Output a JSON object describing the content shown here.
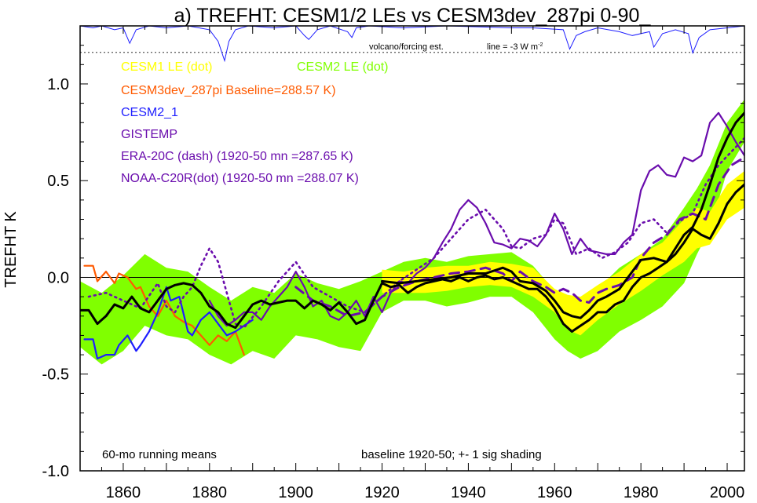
{
  "chart_data": {
    "type": "line",
    "title": "a) TREFHT: CESM1/2 LEs vs CESM3dev_287pi 0-90_",
    "xlabel": "",
    "ylabel": "TREFHT K",
    "xlim": [
      1850,
      2004
    ],
    "ylim": [
      -1.0,
      1.3
    ],
    "x_ticks": [
      "1860",
      "1880",
      "1900",
      "1920",
      "1940",
      "1960",
      "1980",
      "2000"
    ],
    "y_ticks": [
      "1.0",
      "0.5",
      "0.0",
      "-0.5",
      "-1.0"
    ],
    "zero_line": 0.0,
    "legend": [
      {
        "text": "CESM1 LE (dot)",
        "color": "#ffff00"
      },
      {
        "text": "CESM2 LE (dot)",
        "color": "#80ff00"
      },
      {
        "text": "CESM3dev_287pi Baseline=288.57 K)",
        "color": "#ff5a00"
      },
      {
        "text": "CESM2_1",
        "color": "#1e1eff"
      },
      {
        "text": "GISTEMP",
        "color": "#6a0dad"
      },
      {
        "text": "ERA-20C (dash) (1920-50 mn =287.65 K)",
        "color": "#6a0dad"
      },
      {
        "text": "NOAA-C20R(dot) (1920-50 mn =288.07 K)",
        "color": "#6a0dad"
      }
    ],
    "annotations": {
      "running_mean": "60-mo running means",
      "baseline": "baseline 1920-50; +- 1 sig shading",
      "volcano": "volcano/forcing est.",
      "volcano_scale": "line = -3 W m",
      "volcano_scale_sup": "-2"
    },
    "volcano_forcing": {
      "color": "#1e1eff",
      "x": [
        1850,
        1853,
        1855,
        1858,
        1860,
        1861.5,
        1863,
        1866,
        1870,
        1875,
        1880,
        1882,
        1883.5,
        1884.5,
        1886,
        1889,
        1895,
        1900,
        1902,
        1903,
        1905,
        1908,
        1912,
        1913,
        1914,
        1917,
        1925,
        1935,
        1950,
        1955,
        1962,
        1963.5,
        1965,
        1967,
        1970,
        1975,
        1978,
        1982,
        1983,
        1985,
        1988,
        1991,
        1992,
        1993.5,
        1996,
        2000,
        2004
      ],
      "y": [
        1.3,
        1.29,
        1.3,
        1.28,
        1.29,
        1.21,
        1.28,
        1.3,
        1.29,
        1.3,
        1.28,
        1.22,
        1.12,
        1.22,
        1.28,
        1.3,
        1.29,
        1.3,
        1.25,
        1.23,
        1.28,
        1.3,
        1.27,
        1.24,
        1.29,
        1.3,
        1.29,
        1.3,
        1.29,
        1.29,
        1.28,
        1.18,
        1.25,
        1.27,
        1.29,
        1.27,
        1.25,
        1.27,
        1.19,
        1.26,
        1.28,
        1.26,
        1.16,
        1.24,
        1.28,
        1.29,
        1.3
      ]
    },
    "bands": [
      {
        "name": "CESM2 LE",
        "color": "#80ff00",
        "x": [
          1850,
          1855,
          1860,
          1865,
          1870,
          1875,
          1880,
          1885,
          1890,
          1895,
          1900,
          1905,
          1910,
          1915,
          1920,
          1925,
          1930,
          1935,
          1940,
          1945,
          1950,
          1955,
          1960,
          1963,
          1966,
          1970,
          1975,
          1980,
          1985,
          1990,
          1993,
          1996,
          2000,
          2004
        ],
        "upper": [
          -0.02,
          -0.08,
          0.01,
          0.12,
          0.05,
          0.03,
          -0.05,
          -0.12,
          -0.05,
          -0.08,
          0.02,
          -0.03,
          -0.06,
          -0.02,
          0.03,
          0.08,
          0.1,
          0.08,
          0.11,
          0.12,
          0.13,
          0.06,
          -0.07,
          -0.15,
          -0.12,
          -0.06,
          0.05,
          0.12,
          0.2,
          0.36,
          0.46,
          0.58,
          0.8,
          0.92
        ],
        "lower": [
          -0.36,
          -0.45,
          -0.38,
          -0.25,
          -0.3,
          -0.32,
          -0.4,
          -0.45,
          -0.38,
          -0.42,
          -0.3,
          -0.32,
          -0.36,
          -0.38,
          -0.18,
          -0.12,
          -0.12,
          -0.15,
          -0.13,
          -0.1,
          -0.1,
          -0.18,
          -0.32,
          -0.38,
          -0.42,
          -0.38,
          -0.28,
          -0.22,
          -0.15,
          -0.03,
          0.12,
          0.25,
          0.55,
          0.7
        ]
      },
      {
        "name": "CESM1 LE",
        "color": "#ffff00",
        "x": [
          1920,
          1925,
          1930,
          1935,
          1940,
          1945,
          1950,
          1955,
          1960,
          1963,
          1966,
          1970,
          1975,
          1980,
          1985,
          1990,
          1993,
          1996,
          2000,
          2004
        ],
        "upper": [
          0.04,
          0.03,
          0.05,
          0.06,
          0.06,
          0.08,
          0.07,
          0.05,
          -0.06,
          -0.09,
          -0.1,
          -0.04,
          0.03,
          0.12,
          0.18,
          0.3,
          0.36,
          0.34,
          0.48,
          0.55
        ],
        "lower": [
          -0.08,
          -0.08,
          -0.08,
          -0.07,
          -0.05,
          -0.04,
          -0.05,
          -0.1,
          -0.18,
          -0.27,
          -0.3,
          -0.22,
          -0.14,
          -0.07,
          0.01,
          0.08,
          0.15,
          0.17,
          0.3,
          0.36
        ]
      }
    ],
    "series": [
      {
        "name": "GISTEMP",
        "color": "#6a0dad",
        "style": "solid",
        "x": [
          1880,
          1882,
          1884,
          1886,
          1888,
          1890,
          1892,
          1894,
          1896,
          1898,
          1900,
          1902,
          1904,
          1906,
          1908,
          1910,
          1912,
          1914,
          1916,
          1918,
          1920,
          1922,
          1924,
          1926,
          1928,
          1930,
          1932,
          1934,
          1936,
          1938,
          1940,
          1942,
          1944,
          1946,
          1948,
          1950,
          1952,
          1954,
          1956,
          1958,
          1960,
          1962,
          1964,
          1966,
          1968,
          1970,
          1972,
          1974,
          1976,
          1978,
          1980,
          1982,
          1984,
          1986,
          1988,
          1990,
          1992,
          1994,
          1996,
          1998,
          2000,
          2002,
          2004
        ],
        "y": [
          -0.12,
          -0.2,
          -0.25,
          -0.22,
          -0.18,
          -0.18,
          -0.22,
          -0.15,
          -0.1,
          -0.05,
          0.03,
          -0.05,
          -0.15,
          -0.12,
          -0.2,
          -0.22,
          -0.18,
          -0.12,
          -0.2,
          -0.1,
          -0.18,
          -0.08,
          -0.02,
          -0.03,
          0.02,
          0.05,
          0.1,
          0.18,
          0.25,
          0.35,
          0.4,
          0.36,
          0.28,
          0.18,
          0.17,
          0.15,
          0.2,
          0.19,
          0.16,
          0.22,
          0.33,
          0.25,
          0.12,
          0.2,
          0.14,
          0.13,
          0.12,
          0.12,
          0.18,
          0.22,
          0.45,
          0.55,
          0.58,
          0.53,
          0.52,
          0.62,
          0.6,
          0.63,
          0.8,
          0.85,
          0.78,
          0.7,
          0.63
        ]
      },
      {
        "name": "ERA-20C",
        "color": "#6a0dad",
        "style": "dash",
        "x": [
          1900,
          1904,
          1908,
          1912,
          1916,
          1920,
          1924,
          1928,
          1932,
          1936,
          1940,
          1944,
          1948,
          1950,
          1952,
          1955,
          1958,
          1960,
          1962,
          1964,
          1966,
          1968,
          1970,
          1972,
          1975,
          1978,
          1980,
          1983,
          1986,
          1989,
          1992,
          1995,
          1998,
          2001,
          2004
        ],
        "y": [
          -0.05,
          -0.12,
          -0.15,
          -0.2,
          -0.18,
          -0.1,
          -0.05,
          -0.02,
          0.0,
          0.02,
          0.03,
          0.05,
          0.02,
          -0.02,
          0.03,
          -0.02,
          -0.05,
          -0.08,
          -0.06,
          -0.08,
          -0.12,
          -0.13,
          -0.08,
          -0.06,
          -0.04,
          0.0,
          0.1,
          0.18,
          0.22,
          0.3,
          0.33,
          0.3,
          0.48,
          0.58,
          0.62
        ]
      },
      {
        "name": "NOAA-C20R",
        "color": "#6a0dad",
        "style": "dot",
        "x": [
          1852,
          1856,
          1860,
          1864,
          1868,
          1870,
          1872,
          1874,
          1876,
          1878,
          1880,
          1882,
          1884,
          1886,
          1888,
          1892,
          1896,
          1900,
          1904,
          1908,
          1912,
          1916,
          1920,
          1924,
          1928,
          1932,
          1936,
          1940,
          1944,
          1948,
          1950,
          1952,
          1955,
          1958,
          1960,
          1962,
          1965,
          1968,
          1971,
          1974,
          1977,
          1980,
          1983,
          1986,
          1989,
          1992,
          1995,
          1998,
          2001,
          2004
        ],
        "y": [
          -0.1,
          -0.08,
          -0.12,
          -0.16,
          -0.03,
          -0.15,
          -0.18,
          -0.1,
          -0.05,
          0.06,
          0.15,
          0.08,
          -0.08,
          -0.24,
          -0.26,
          -0.15,
          -0.02,
          0.08,
          -0.05,
          -0.1,
          -0.15,
          -0.18,
          -0.1,
          -0.02,
          0.04,
          0.1,
          0.2,
          0.3,
          0.35,
          0.25,
          0.16,
          0.15,
          0.2,
          0.22,
          0.3,
          0.28,
          0.12,
          0.15,
          0.1,
          0.13,
          0.18,
          0.28,
          0.3,
          0.23,
          0.29,
          0.33,
          0.48,
          0.58,
          0.65,
          0.72
        ]
      },
      {
        "name": "CESM3dev_287pi",
        "color": "#ff5a00",
        "style": "solid",
        "x": [
          1851,
          1853,
          1854,
          1856,
          1858,
          1859,
          1861,
          1863,
          1864,
          1866,
          1868,
          1870,
          1872,
          1874,
          1876,
          1878,
          1880,
          1882,
          1884,
          1886,
          1888
        ],
        "y": [
          0.06,
          0.06,
          -0.02,
          0.03,
          -0.03,
          0.02,
          0.0,
          -0.06,
          -0.05,
          -0.15,
          -0.2,
          -0.12,
          -0.2,
          -0.23,
          -0.25,
          -0.3,
          -0.35,
          -0.3,
          -0.33,
          -0.28,
          -0.4
        ]
      },
      {
        "name": "CESM2_1",
        "color": "#1e1eff",
        "style": "solid",
        "x": [
          1851,
          1853,
          1854,
          1856,
          1858,
          1859,
          1861,
          1863,
          1864,
          1866,
          1868,
          1870,
          1871,
          1873,
          1875,
          1876,
          1878,
          1880,
          1882,
          1884,
          1886,
          1888,
          1890
        ],
        "y": [
          -0.32,
          -0.32,
          -0.42,
          -0.4,
          -0.4,
          -0.35,
          -0.3,
          -0.38,
          -0.35,
          -0.28,
          -0.18,
          -0.05,
          -0.12,
          -0.1,
          -0.28,
          -0.3,
          -0.22,
          -0.18,
          -0.24,
          -0.3,
          -0.28,
          -0.25,
          -0.22
        ]
      },
      {
        "name": "CESM2 LE mean",
        "color": "#000000",
        "style": "thick",
        "x": [
          1850,
          1852,
          1854,
          1856,
          1858,
          1860,
          1862,
          1864,
          1866,
          1868,
          1870,
          1872,
          1874,
          1876,
          1878,
          1880,
          1882,
          1884,
          1886,
          1888,
          1890,
          1892,
          1894,
          1896,
          1898,
          1900,
          1902,
          1904,
          1906,
          1908,
          1910,
          1912,
          1914,
          1916,
          1918,
          1920,
          1922,
          1924,
          1926,
          1928,
          1930,
          1932,
          1934,
          1936,
          1938,
          1940,
          1942,
          1944,
          1946,
          1948,
          1950,
          1952,
          1954,
          1956,
          1958,
          1960,
          1962,
          1964,
          1966,
          1968,
          1970,
          1972,
          1974,
          1976,
          1978,
          1980,
          1982,
          1984,
          1986,
          1988,
          1990,
          1992,
          1994,
          1996,
          1998,
          2000,
          2002,
          2004
        ],
        "y": [
          -0.17,
          -0.17,
          -0.24,
          -0.2,
          -0.14,
          -0.16,
          -0.1,
          -0.16,
          -0.18,
          -0.12,
          -0.06,
          -0.04,
          -0.03,
          -0.04,
          -0.08,
          -0.15,
          -0.18,
          -0.24,
          -0.26,
          -0.2,
          -0.14,
          -0.12,
          -0.14,
          -0.13,
          -0.12,
          -0.12,
          -0.16,
          -0.12,
          -0.14,
          -0.17,
          -0.13,
          -0.18,
          -0.24,
          -0.22,
          -0.12,
          -0.03,
          -0.05,
          -0.04,
          -0.08,
          -0.05,
          -0.03,
          -0.02,
          -0.01,
          -0.02,
          0.0,
          -0.02,
          0.0,
          0.01,
          -0.01,
          0.0,
          -0.02,
          -0.04,
          -0.06,
          -0.06,
          -0.1,
          -0.16,
          -0.24,
          -0.28,
          -0.25,
          -0.22,
          -0.18,
          -0.18,
          -0.14,
          -0.12,
          -0.05,
          0.0,
          0.02,
          0.05,
          0.08,
          0.15,
          0.22,
          0.26,
          0.35,
          0.48,
          0.62,
          0.72,
          0.8,
          0.85
        ]
      },
      {
        "name": "CESM1 LE mean",
        "color": "#000000",
        "style": "thick",
        "x": [
          1920,
          1924,
          1928,
          1932,
          1936,
          1940,
          1944,
          1948,
          1950,
          1952,
          1955,
          1958,
          1960,
          1962,
          1964,
          1966,
          1968,
          1970,
          1972,
          1975,
          1978,
          1980,
          1983,
          1986,
          1988,
          1990,
          1992,
          1994,
          1996,
          1998,
          2000,
          2002,
          2004
        ],
        "y": [
          -0.02,
          -0.03,
          -0.02,
          -0.01,
          0.0,
          0.02,
          0.02,
          0.05,
          0.03,
          -0.02,
          -0.03,
          -0.07,
          -0.12,
          -0.18,
          -0.2,
          -0.21,
          -0.17,
          -0.12,
          -0.1,
          -0.06,
          0.03,
          0.09,
          0.1,
          0.08,
          0.12,
          0.18,
          0.25,
          0.22,
          0.2,
          0.28,
          0.38,
          0.44,
          0.48
        ]
      }
    ]
  }
}
